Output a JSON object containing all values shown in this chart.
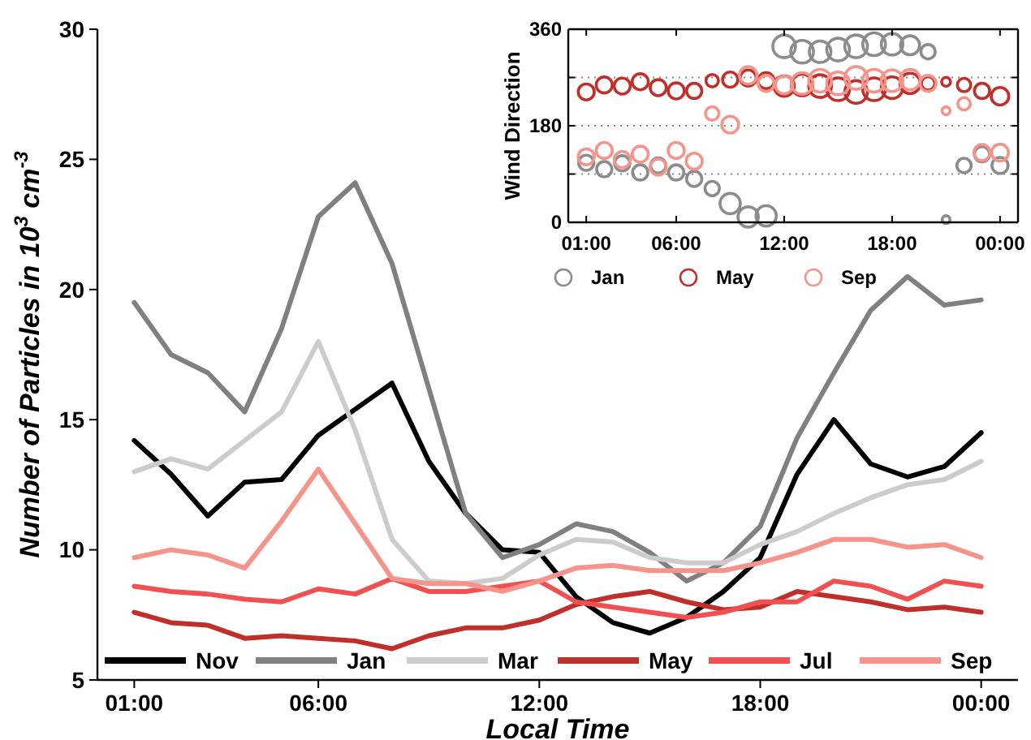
{
  "chart_data": [
    {
      "type": "line",
      "xlabel": "Local Time",
      "ylabel": "Number of Particles in 10$^{3}$ cm$^{-3}$",
      "x": [
        1,
        2,
        3,
        4,
        5,
        6,
        7,
        8,
        9,
        10,
        11,
        12,
        13,
        14,
        15,
        16,
        17,
        18,
        19,
        20,
        21,
        22,
        23,
        24
      ],
      "xlim": [
        0,
        25
      ],
      "xticks": [
        {
          "value": 1,
          "label": "01:00"
        },
        {
          "value": 6,
          "label": "06:00"
        },
        {
          "value": 12,
          "label": "12:00"
        },
        {
          "value": 18,
          "label": "18:00"
        },
        {
          "value": 24,
          "label": "00:00"
        }
      ],
      "ylim": [
        5,
        30
      ],
      "yticks": [
        5,
        10,
        15,
        20,
        25,
        30
      ],
      "grid": false,
      "legend": "bottom",
      "line_style": "solid",
      "marker": "none",
      "series": [
        {
          "name": "Nov",
          "color": "#000000",
          "values": [
            14.2,
            12.9,
            11.3,
            12.6,
            12.7,
            14.4,
            15.4,
            16.4,
            13.4,
            11.4,
            10.0,
            9.9,
            8.2,
            7.2,
            6.8,
            7.4,
            8.4,
            9.7,
            12.9,
            15.0,
            13.3,
            12.8,
            13.2,
            14.5
          ]
        },
        {
          "name": "Jan",
          "color": "#808080",
          "values": [
            19.5,
            17.5,
            16.8,
            15.3,
            18.5,
            22.8,
            24.1,
            21.0,
            16.2,
            11.4,
            9.7,
            10.2,
            11.0,
            10.7,
            9.9,
            8.8,
            9.5,
            10.9,
            14.3,
            16.8,
            19.2,
            20.5,
            19.4,
            19.6
          ]
        },
        {
          "name": "Mar",
          "color": "#cccccc",
          "values": [
            13.0,
            13.5,
            13.1,
            14.2,
            15.3,
            18.0,
            14.6,
            10.4,
            8.8,
            8.7,
            8.9,
            9.8,
            10.4,
            10.3,
            9.7,
            9.5,
            9.5,
            10.2,
            10.7,
            11.4,
            12.0,
            12.5,
            12.7,
            13.4
          ]
        },
        {
          "name": "May",
          "color": "#c0302a",
          "values": [
            7.6,
            7.2,
            7.1,
            6.6,
            6.7,
            6.6,
            6.5,
            6.2,
            6.7,
            7.0,
            7.0,
            7.3,
            7.9,
            8.2,
            8.4,
            8.0,
            7.7,
            7.8,
            8.4,
            8.2,
            8.0,
            7.7,
            7.8,
            7.6
          ]
        },
        {
          "name": "Jul",
          "color": "#f05050",
          "values": [
            8.6,
            8.4,
            8.3,
            8.1,
            8.0,
            8.5,
            8.3,
            8.9,
            8.4,
            8.4,
            8.6,
            8.8,
            8.0,
            7.8,
            7.6,
            7.4,
            7.6,
            8.0,
            8.0,
            8.8,
            8.6,
            8.1,
            8.8,
            8.6
          ]
        },
        {
          "name": "Sep",
          "color": "#f4948a",
          "values": [
            9.7,
            10.0,
            9.8,
            9.3,
            11.1,
            13.1,
            11.0,
            8.9,
            8.7,
            8.7,
            8.4,
            8.8,
            9.3,
            9.4,
            9.2,
            9.2,
            9.2,
            9.5,
            9.9,
            10.4,
            10.4,
            10.1,
            10.2,
            9.7
          ]
        }
      ]
    },
    {
      "type": "bubble",
      "ylabel": "Wind Direction",
      "x": [
        1,
        2,
        3,
        4,
        5,
        6,
        7,
        8,
        9,
        10,
        11,
        12,
        13,
        14,
        15,
        16,
        17,
        18,
        19,
        20,
        21,
        22,
        23,
        24
      ],
      "xlim": [
        0,
        25
      ],
      "xticks": [
        {
          "value": 1,
          "label": "01:00"
        },
        {
          "value": 6,
          "label": "06:00"
        },
        {
          "value": 12,
          "label": "12:00"
        },
        {
          "value": 18,
          "label": "18:00"
        },
        {
          "value": 24,
          "label": "00:00"
        }
      ],
      "ylim": [
        0,
        360
      ],
      "yticks": [
        0,
        {
          "value": 90,
          "label": null
        },
        180,
        {
          "value": 270,
          "label": null
        },
        360
      ],
      "grid": "y",
      "legend": "bottom",
      "marker": "circle",
      "series": [
        {
          "name": "Jan",
          "color": "#8c8c8c",
          "values": [
            111,
            99,
            110,
            93,
            106,
            93,
            81,
            63,
            35,
            10,
            12,
            328,
            318,
            318,
            322,
            328,
            332,
            332,
            330,
            318,
            5,
            106,
            127,
            106
          ],
          "sizes": [
            0.45,
            0.45,
            0.45,
            0.45,
            0.45,
            0.45,
            0.45,
            0.4,
            0.8,
            0.8,
            0.8,
            1,
            1,
            0.9,
            1,
            1,
            1,
            0.9,
            0.7,
            0.4,
            0.12,
            0.4,
            0.45,
            0.5
          ]
        },
        {
          "name": "May",
          "color": "#c0302a",
          "values": [
            243,
            256,
            254,
            262,
            251,
            245,
            245,
            264,
            266,
            269,
            264,
            254,
            256,
            254,
            248,
            243,
            248,
            251,
            259,
            259,
            262,
            256,
            245,
            235
          ],
          "sizes": [
            0.5,
            0.5,
            0.5,
            0.5,
            0.5,
            0.5,
            0.45,
            0.3,
            0.45,
            0.5,
            0.5,
            0.8,
            0.9,
            1,
            1,
            1,
            1,
            0.9,
            0.8,
            0.35,
            0.15,
            0.35,
            0.45,
            0.6
          ]
        },
        {
          "name": "Sep",
          "color": "#f4948a",
          "values": [
            122,
            134,
            117,
            127,
            103,
            134,
            114,
            203,
            182,
            274,
            259,
            256,
            259,
            264,
            259,
            269,
            264,
            264,
            266,
            259,
            208,
            221,
            130,
            130
          ],
          "sizes": [
            0.5,
            0.5,
            0.5,
            0.5,
            0.5,
            0.5,
            0.5,
            0.35,
            0.55,
            0.6,
            0.5,
            0.6,
            0.9,
            1,
            1,
            1,
            1,
            0.9,
            0.8,
            0.5,
            0.12,
            0.3,
            0.5,
            0.55
          ]
        }
      ]
    }
  ]
}
